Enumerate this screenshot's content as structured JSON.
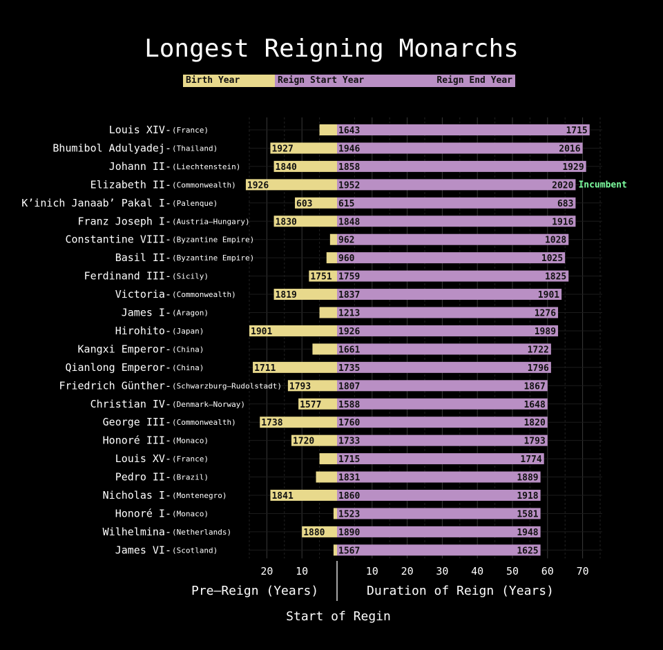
{
  "title": "Longest Reigning Monarchs",
  "legend": {
    "birth_label": "Birth Year",
    "reign_start_label": "Reign Start Year",
    "reign_end_label": "Reign End Year"
  },
  "axes": {
    "pre_reign_label": "Pre–Reign (Years)",
    "duration_label": "Duration of Reign (Years)",
    "start_label": "Start of Regin"
  },
  "colors": {
    "birth": "#e8d98c",
    "reign": "#b98fc4",
    "incumbent": "#7dffa0",
    "background": "#000000"
  },
  "chart_data": {
    "type": "bar",
    "orientation": "horizontal-diverging",
    "left_axis": {
      "label": "Pre–Reign (Years)",
      "ticks": [
        20,
        10
      ]
    },
    "right_axis": {
      "label": "Duration of Reign (Years)",
      "ticks": [
        10,
        20,
        30,
        40,
        50,
        60,
        70
      ]
    },
    "incumbent_label": "Incumbent",
    "rows": [
      {
        "name": "Louis XIV",
        "region": "(France)",
        "birth": 1638,
        "start": 1643,
        "end": 1715,
        "birth_label": ""
      },
      {
        "name": "Bhumibol Adulyadej",
        "region": "(Thailand)",
        "birth": 1927,
        "start": 1946,
        "end": 2016,
        "birth_label": "1927"
      },
      {
        "name": "Johann II",
        "region": "(Liechtenstein)",
        "birth": 1840,
        "start": 1858,
        "end": 1929,
        "birth_label": "1840"
      },
      {
        "name": "Elizabeth II",
        "region": "(Commonwealth)",
        "birth": 1926,
        "start": 1952,
        "end": 2020,
        "birth_label": "1926",
        "incumbent": true
      },
      {
        "name": "K’inich Janaab’ Pakal I",
        "region": "(Palenque)",
        "birth": 603,
        "start": 615,
        "end": 683,
        "birth_label": "603"
      },
      {
        "name": "Franz Joseph I",
        "region": "(Austria–Hungary)",
        "birth": 1830,
        "start": 1848,
        "end": 1916,
        "birth_label": "1830"
      },
      {
        "name": "Constantine VIII",
        "region": "(Byzantine Empire)",
        "birth": 960,
        "start": 962,
        "end": 1028,
        "birth_label": ""
      },
      {
        "name": "Basil II",
        "region": "(Byzantine Empire)",
        "birth": 957,
        "start": 960,
        "end": 1025,
        "birth_label": ""
      },
      {
        "name": "Ferdinand III",
        "region": "(Sicily)",
        "birth": 1751,
        "start": 1759,
        "end": 1825,
        "birth_label": "1751"
      },
      {
        "name": "Victoria",
        "region": "(Commonwealth)",
        "birth": 1819,
        "start": 1837,
        "end": 1901,
        "birth_label": "1819"
      },
      {
        "name": "James I",
        "region": "(Aragon)",
        "birth": 1208,
        "start": 1213,
        "end": 1276,
        "birth_label": ""
      },
      {
        "name": "Hirohito",
        "region": "(Japan)",
        "birth": 1901,
        "start": 1926,
        "end": 1989,
        "birth_label": "1901"
      },
      {
        "name": "Kangxi Emperor",
        "region": "(China)",
        "birth": 1654,
        "start": 1661,
        "end": 1722,
        "birth_label": ""
      },
      {
        "name": "Qianlong Emperor",
        "region": "(China)",
        "birth": 1711,
        "start": 1735,
        "end": 1796,
        "birth_label": "1711"
      },
      {
        "name": "Friedrich Günther",
        "region": "(Schwarzburg–Rudolstadt)",
        "birth": 1793,
        "start": 1807,
        "end": 1867,
        "birth_label": "1793"
      },
      {
        "name": "Christian IV",
        "region": "(Denmark–Norway)",
        "birth": 1577,
        "start": 1588,
        "end": 1648,
        "birth_label": "1577"
      },
      {
        "name": "George III",
        "region": "(Commonwealth)",
        "birth": 1738,
        "start": 1760,
        "end": 1820,
        "birth_label": "1738"
      },
      {
        "name": "Honoré III",
        "region": "(Monaco)",
        "birth": 1720,
        "start": 1733,
        "end": 1793,
        "birth_label": "1720"
      },
      {
        "name": "Louis XV",
        "region": "(France)",
        "birth": 1710,
        "start": 1715,
        "end": 1774,
        "birth_label": ""
      },
      {
        "name": "Pedro II",
        "region": "(Brazil)",
        "birth": 1825,
        "start": 1831,
        "end": 1889,
        "birth_label": ""
      },
      {
        "name": "Nicholas I",
        "region": "(Montenegro)",
        "birth": 1841,
        "start": 1860,
        "end": 1918,
        "birth_label": "1841"
      },
      {
        "name": "Honoré I",
        "region": "(Monaco)",
        "birth": 1522,
        "start": 1523,
        "end": 1581,
        "birth_label": ""
      },
      {
        "name": "Wilhelmina",
        "region": "(Netherlands)",
        "birth": 1880,
        "start": 1890,
        "end": 1948,
        "birth_label": "1880"
      },
      {
        "name": "James VI",
        "region": "(Scotland)",
        "birth": 1566,
        "start": 1567,
        "end": 1625,
        "birth_label": ""
      }
    ]
  }
}
